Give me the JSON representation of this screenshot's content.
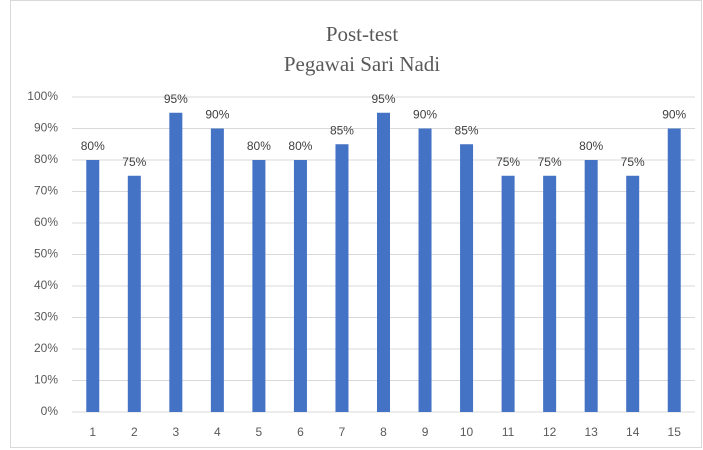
{
  "chart_data": {
    "type": "bar",
    "title": "Post-test",
    "subtitle": "Pegawai Sari Nadi",
    "categories": [
      "1",
      "2",
      "3",
      "4",
      "5",
      "6",
      "7",
      "8",
      "9",
      "10",
      "11",
      "12",
      "13",
      "14",
      "15"
    ],
    "values": [
      80,
      75,
      95,
      90,
      80,
      80,
      85,
      95,
      90,
      85,
      75,
      75,
      80,
      75,
      90
    ],
    "value_labels": [
      "80%",
      "75%",
      "95%",
      "90%",
      "80%",
      "80%",
      "85%",
      "95%",
      "90%",
      "85%",
      "75%",
      "75%",
      "80%",
      "75%",
      "90%"
    ],
    "color": "#4472c4",
    "ylim": [
      0,
      100
    ],
    "yticks": [
      {
        "value": 0,
        "label": "0%"
      },
      {
        "value": 10,
        "label": "10%"
      },
      {
        "value": 20,
        "label": "20%"
      },
      {
        "value": 30,
        "label": "30%"
      },
      {
        "value": 40,
        "label": "40%"
      },
      {
        "value": 50,
        "label": "50%"
      },
      {
        "value": 60,
        "label": "60%"
      },
      {
        "value": 70,
        "label": "70%"
      },
      {
        "value": 80,
        "label": "80%"
      },
      {
        "value": 90,
        "label": "90%"
      },
      {
        "value": 100,
        "label": "100%"
      }
    ],
    "grid": true
  }
}
